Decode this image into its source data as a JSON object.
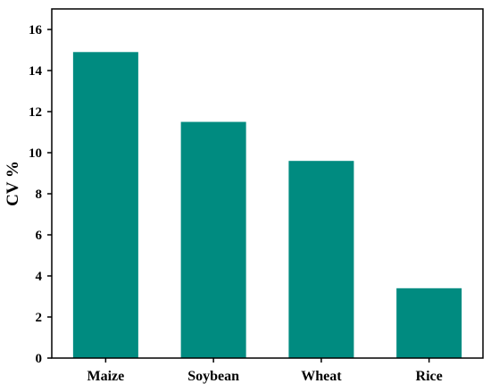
{
  "chart_data": {
    "type": "bar",
    "title": "",
    "xlabel": "",
    "ylabel": "CV %",
    "categories": [
      "Maize",
      "Soybean",
      "Wheat",
      "Rice"
    ],
    "values": [
      14.9,
      11.5,
      9.6,
      3.4
    ],
    "ylim": [
      0,
      17
    ],
    "yticks": [
      0,
      2,
      4,
      6,
      8,
      10,
      12,
      14,
      16
    ],
    "grid": false,
    "legend": "none",
    "bar_color": "#008B80",
    "axis_color": "#000000"
  }
}
